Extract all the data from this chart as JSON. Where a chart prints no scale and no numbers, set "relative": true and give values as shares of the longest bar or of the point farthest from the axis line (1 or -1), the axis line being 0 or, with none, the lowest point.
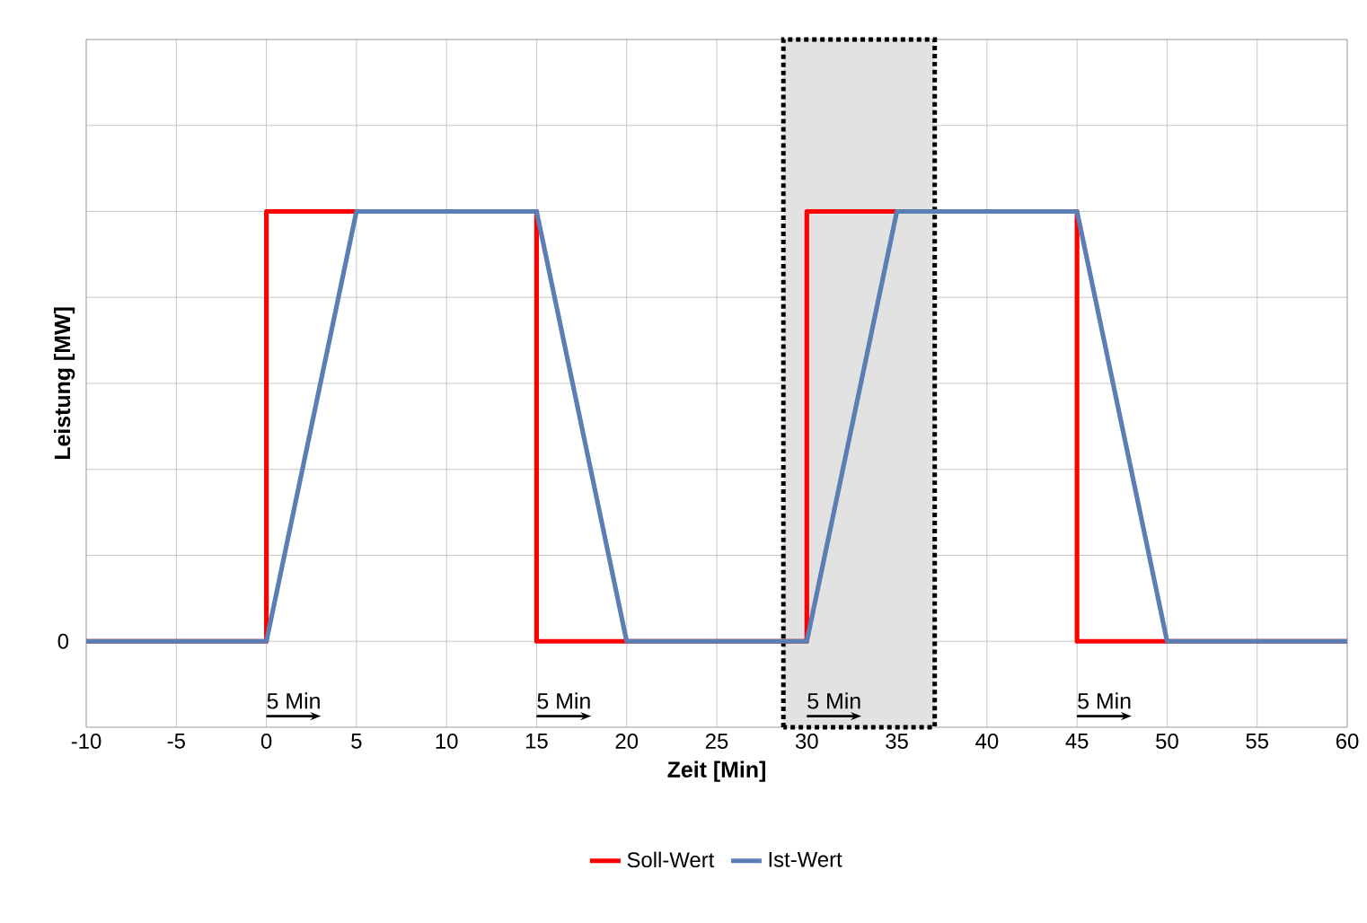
{
  "chart_data": {
    "type": "line",
    "relative": true,
    "xlabel": "Zeit [Min]",
    "ylabel": "Leistung [MW]",
    "xlim": [
      -10,
      60
    ],
    "xticks": [
      -10,
      -5,
      0,
      5,
      10,
      15,
      20,
      25,
      30,
      35,
      40,
      45,
      50,
      55,
      60
    ],
    "series": [
      {
        "name": "Soll-Wert",
        "type": "step",
        "color": "#ff0000",
        "x": [
          -10,
          0,
          15,
          30,
          45,
          60
        ],
        "values": [
          0,
          1,
          0,
          1,
          0,
          0
        ]
      },
      {
        "name": "Ist-Wert",
        "color": "#5b7fb5",
        "x": [
          -10,
          0,
          5,
          15,
          20,
          30,
          35,
          45,
          50,
          60
        ],
        "values": [
          0,
          0,
          1,
          1,
          0,
          0,
          1,
          1,
          0,
          0
        ]
      }
    ],
    "bands": [
      {
        "axis": "x",
        "from": 28.7,
        "to": 37.1,
        "color": "#e2e2e2"
      }
    ],
    "annotations": [
      "5 Min",
      "5 Min",
      "5 Min",
      "5 Min",
      "0"
    ],
    "grid": true,
    "legend": "bottom",
    "marker": "none",
    "line_style": "solid"
  }
}
